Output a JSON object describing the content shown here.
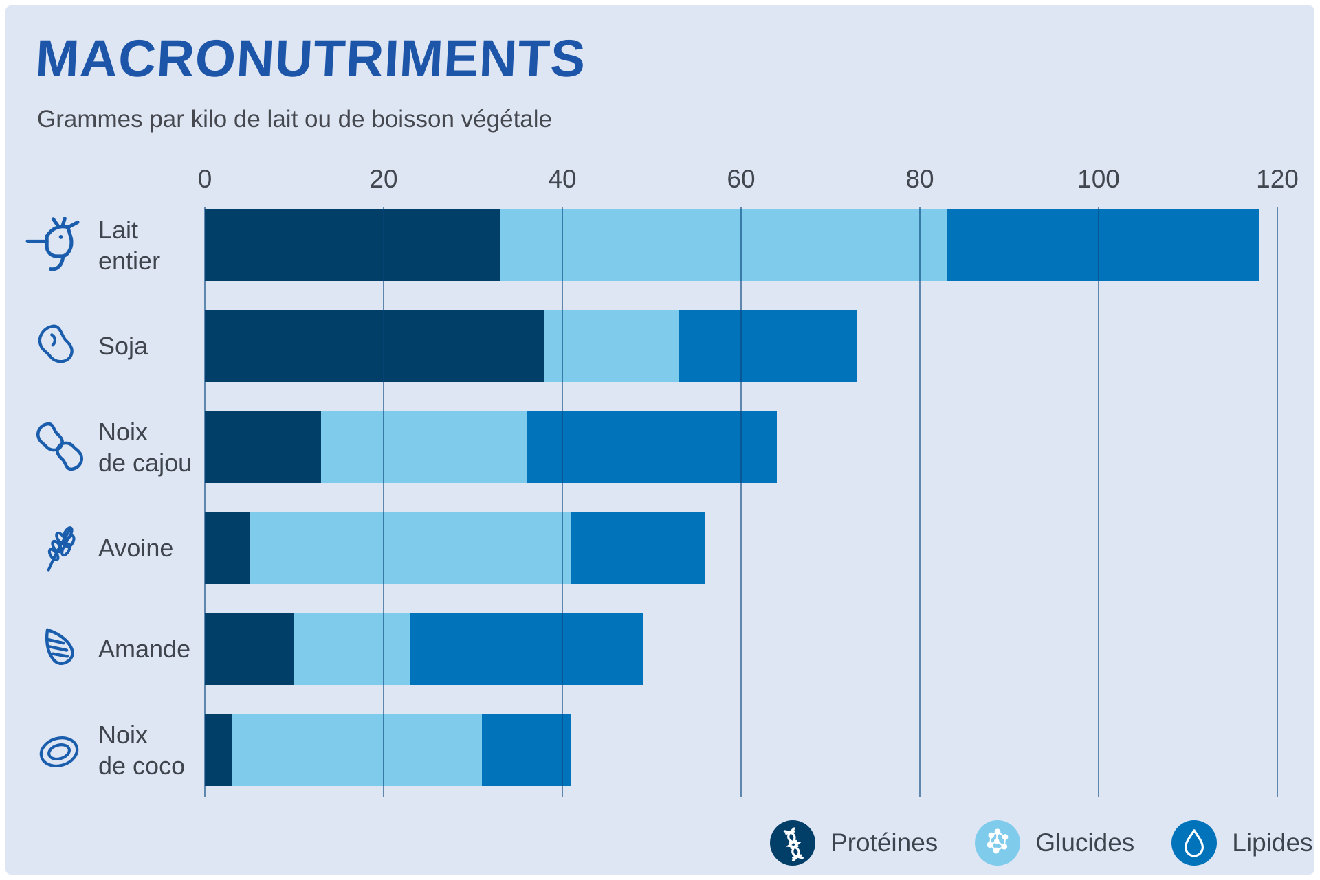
{
  "page": {
    "title": "MACRONUTRIMENTS",
    "subtitle": "Grammes par kilo de lait ou de boisson végétale"
  },
  "colors": {
    "frame": "#ffffff",
    "background": "#dfe6f3",
    "title_text": "#1d55a8",
    "subtitle_text": "#45484f",
    "axis_text": "#41464f",
    "label_text": "#3f444d",
    "legend_text": "#3c444e",
    "icon_stroke": "#1a5dad",
    "gridline": "rgba(10,70,125,0.6)",
    "proteines": "#023f68",
    "glucides": "#7ecbeb",
    "lipides": "#0173bb"
  },
  "chart_data": {
    "type": "bar",
    "orientation": "horizontal",
    "stacked": true,
    "title": "MACRONUTRIMENTS",
    "subtitle": "Grammes par kilo de lait ou de boisson végétale",
    "unit": "g par kilo",
    "categories": [
      "Lait entier",
      "Soja",
      "Noix de cajou",
      "Avoine",
      "Amande",
      "Noix de coco"
    ],
    "series": [
      {
        "name": "Protéines",
        "color": "#023f68",
        "values": [
          33,
          38,
          13,
          5,
          10,
          3
        ]
      },
      {
        "name": "Glucides",
        "color": "#7ecbeb",
        "values": [
          50,
          15,
          23,
          36,
          13,
          28
        ]
      },
      {
        "name": "Lipides",
        "color": "#0173bb",
        "values": [
          35,
          20,
          28,
          15,
          26,
          10
        ]
      }
    ],
    "totals": [
      118,
      73,
      64,
      56,
      49,
      41
    ],
    "x_ticks": [
      0,
      20,
      40,
      60,
      80,
      100,
      120
    ],
    "xlim": [
      0,
      120
    ],
    "grid": true,
    "legend_position": "bottom-right"
  },
  "rows": [
    {
      "label_lines": [
        "Lait",
        "entier"
      ],
      "icon": "cow-icon"
    },
    {
      "label_lines": [
        "Soja"
      ],
      "icon": "soybean-icon"
    },
    {
      "label_lines": [
        "Noix",
        "de cajou"
      ],
      "icon": "cashew-icon"
    },
    {
      "label_lines": [
        "Avoine"
      ],
      "icon": "oat-icon"
    },
    {
      "label_lines": [
        "Amande"
      ],
      "icon": "almond-icon"
    },
    {
      "label_lines": [
        "Noix",
        "de coco"
      ],
      "icon": "coconut-icon"
    }
  ],
  "legend": [
    {
      "label": "Protéines",
      "icon": "dna-icon",
      "color": "#023f68"
    },
    {
      "label": "Glucides",
      "icon": "molecule-icon",
      "color": "#7ecbeb"
    },
    {
      "label": "Lipides",
      "icon": "droplet-icon",
      "color": "#0173bb"
    }
  ]
}
